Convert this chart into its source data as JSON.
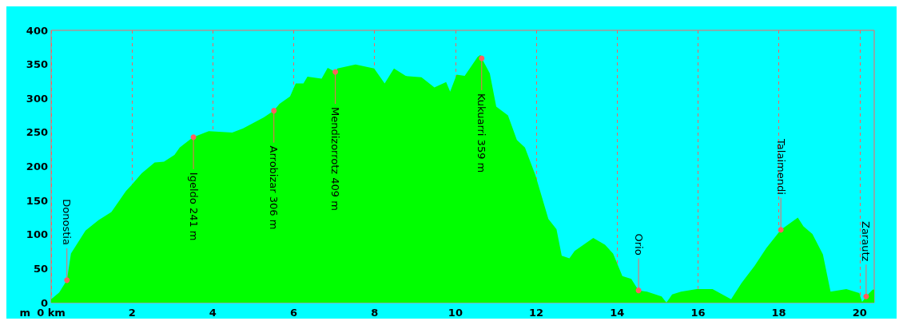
{
  "chart_data": {
    "type": "area",
    "ylabel": "m",
    "x": [
      0,
      0.2,
      0.39,
      0.49,
      0.85,
      1.17,
      1.49,
      1.85,
      1.98,
      2.24,
      2.56,
      2.79,
      3.05,
      3.18,
      3.44,
      3.52,
      3.9,
      4.48,
      4.75,
      5.26,
      5.51,
      5.65,
      5.91,
      6.05,
      6.24,
      6.34,
      6.69,
      6.84,
      7.03,
      7.08,
      7.53,
      7.99,
      8.25,
      8.48,
      8.77,
      9.16,
      9.48,
      9.77,
      9.87,
      10.03,
      10.23,
      10.55,
      10.62,
      10.65,
      10.85,
      11.01,
      11.3,
      11.52,
      11.72,
      11.98,
      12.3,
      12.5,
      12.63,
      12.82,
      12.95,
      13.41,
      13.7,
      13.9,
      14.13,
      14.35,
      14.53,
      14.74,
      15.1,
      15.22,
      15.36,
      15.58,
      15.97,
      16.36,
      16.82,
      17.08,
      17.4,
      17.69,
      18.05,
      18.47,
      18.61,
      18.83,
      19.09,
      19.28,
      19.67,
      19.99,
      20.06,
      20.16,
      20.32,
      20.36
    ],
    "values": [
      5,
      15,
      33,
      72,
      106,
      121,
      133,
      164,
      172,
      190,
      206,
      207,
      217,
      228,
      240,
      243,
      252,
      250,
      256,
      272,
      282,
      292,
      303,
      322,
      322,
      332,
      329,
      345,
      339,
      344,
      350,
      344,
      322,
      344,
      333,
      331,
      316,
      324,
      310,
      335,
      333,
      361,
      364,
      359,
      337,
      288,
      275,
      239,
      228,
      187,
      123,
      108,
      69,
      65,
      76,
      95,
      85,
      72,
      39,
      35,
      18,
      16,
      9,
      0,
      12,
      16,
      20,
      20,
      5,
      29,
      54,
      80,
      107,
      125,
      112,
      101,
      71,
      16,
      20,
      14,
      1,
      9,
      19,
      19
    ],
    "color": "#00ff00",
    "xlim": [
      0,
      20.36
    ],
    "xticks": [
      {
        "value": 0,
        "label": "0 km"
      },
      2,
      4,
      6,
      8,
      10,
      12,
      14,
      16,
      18,
      20
    ],
    "ylim": [
      0,
      400
    ],
    "yticks": [
      0,
      50,
      100,
      150,
      200,
      250,
      300,
      350,
      400
    ],
    "grid": "x",
    "marker": "none",
    "annotations": [
      {
        "text": "Donostia",
        "x": 0.39,
        "y": 33
      },
      {
        "text": "Igeldo 241 m",
        "x": 3.52,
        "y": 243
      },
      {
        "text": "Arrobizar 306 m",
        "x": 5.51,
        "y": 282
      },
      {
        "text": "Mendizorrotz 409 m",
        "x": 7.03,
        "y": 339
      },
      {
        "text": "Kukuarri 359 m",
        "x": 10.65,
        "y": 359
      },
      {
        "text": "Orio",
        "x": 14.53,
        "y": 18
      },
      {
        "text": "Talaimendi",
        "x": 18.05,
        "y": 107
      },
      {
        "text": "Zarautz",
        "x": 20.16,
        "y": 9
      }
    ]
  }
}
